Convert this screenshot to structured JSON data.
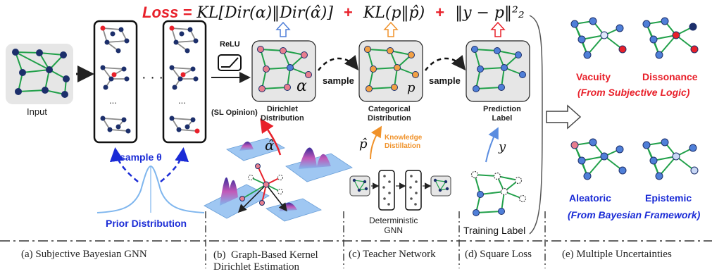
{
  "loss": {
    "prefix": "Loss =",
    "term1": "KL[Dir(α)‖Dir(α̂)]",
    "plus": "+",
    "term2": "KL(p‖p̂)",
    "term3": "‖y − p‖²₂"
  },
  "labels": {
    "input": "Input",
    "relu": "ReLU",
    "sl_opinion": "(SL Opinion)",
    "dirichlet": "Dirichlet\nDistribution",
    "categorical": "Categorical\nDistribution",
    "prediction": "Prediction\nLabel",
    "sample1": "sample",
    "sample2": "sample",
    "sample_theta": "sample θ",
    "prior": "Prior Distribution",
    "alpha": "α",
    "alpha_hat": "α̂",
    "p": "p",
    "p_hat": "p̂",
    "y": "y",
    "knowledge_distillation": "Knowledge\nDistillation",
    "deterministic_gnn": "Deterministic\nGNN",
    "training_label": "Training Label",
    "dots": "· · ·",
    "ellipsis": "..."
  },
  "uncertainties": {
    "vacuity": "Vacuity",
    "dissonance": "Dissonance",
    "subjective_logic": "(From Subjective Logic)",
    "aleatoric": "Aleatoric",
    "epistemic": "Epistemic",
    "bayesian": "(From Bayesian Framework)"
  },
  "captions": [
    "(a)  Subjective Bayesian GNN",
    "(b)  Graph-Based Kernel\nDirichlet Estimation",
    "(c) Teacher Network",
    "(d) Square Loss",
    "(e) Multiple Uncertainties"
  ],
  "colors": {
    "node_navy": "#1c2f6b",
    "edge_green": "#21a04a",
    "red_accent": "#e8202a",
    "blue_accent": "#1a2bd6",
    "orange_accent": "#f0922a",
    "node_pink": "#e87e8e",
    "node_orange": "#f2a044",
    "node_blue": "#4f7fd8",
    "panel_bg": "#e6e6e6"
  }
}
